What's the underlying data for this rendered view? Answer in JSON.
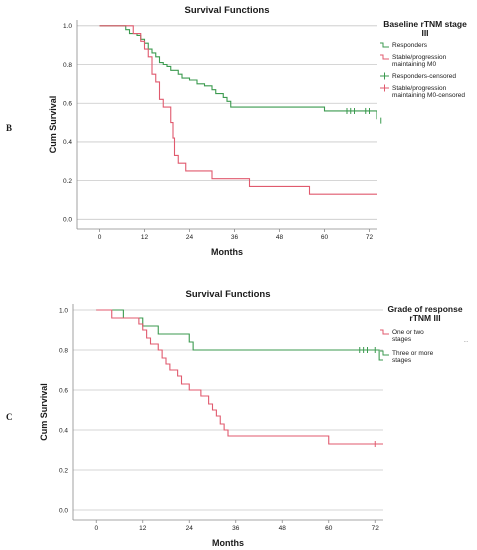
{
  "panel_labels": [
    "B",
    "C"
  ],
  "colors": {
    "green": "#3b9a4f",
    "red": "#e05a6e",
    "grid": "#c8c8c8",
    "axis": "#8a8a8a"
  },
  "chart_data": [
    {
      "type": "line",
      "title": "Survival Functions",
      "xlabel": "Months",
      "ylabel": "Cum Survival",
      "xlim": [
        -6,
        74
      ],
      "ylim": [
        -0.05,
        1.03
      ],
      "xticks": [
        0,
        12,
        24,
        36,
        48,
        60,
        72
      ],
      "yticks": [
        0.0,
        0.2,
        0.4,
        0.6,
        0.8,
        1.0
      ],
      "ytick_labels": [
        "0.0",
        "0.2",
        "0.4",
        "0.6",
        "0.8",
        "1.0"
      ],
      "grid": "horizontal",
      "legend_title_lines": [
        "Baseline rTNM stage",
        "III"
      ],
      "legend": [
        {
          "lines": [
            "Responders"
          ],
          "color": "#3b9a4f",
          "kind": "step"
        },
        {
          "lines": [
            "Stable/progression",
            "maintaining M0"
          ],
          "color": "#e05a6e",
          "kind": "step"
        },
        {
          "lines": [
            "Responders-censored"
          ],
          "color": "#3b9a4f",
          "kind": "censor"
        },
        {
          "lines": [
            "Stable/progression",
            "maintaining M0-censored"
          ],
          "color": "#e05a6e",
          "kind": "censor"
        }
      ],
      "series": [
        {
          "color": "#3b9a4f",
          "steps": [
            [
              0,
              1.0
            ],
            [
              7,
              0.98
            ],
            [
              8,
              0.96
            ],
            [
              10,
              0.95
            ],
            [
              11,
              0.93
            ],
            [
              12,
              0.91
            ],
            [
              13,
              0.88
            ],
            [
              14,
              0.86
            ],
            [
              15,
              0.84
            ],
            [
              16,
              0.81
            ],
            [
              17,
              0.8
            ],
            [
              18,
              0.79
            ],
            [
              19,
              0.77
            ],
            [
              21,
              0.75
            ],
            [
              22,
              0.73
            ],
            [
              24,
              0.72
            ],
            [
              26,
              0.7
            ],
            [
              28,
              0.69
            ],
            [
              30,
              0.67
            ],
            [
              31,
              0.65
            ],
            [
              33,
              0.63
            ],
            [
              34,
              0.61
            ],
            [
              35,
              0.58
            ],
            [
              60,
              0.56
            ],
            [
              74,
              0.52
            ],
            [
              75,
              0.51
            ],
            [
              76,
              0.51
            ]
          ],
          "censored": [
            [
              66,
              0.56
            ],
            [
              67,
              0.56
            ],
            [
              68,
              0.56
            ],
            [
              71,
              0.56
            ],
            [
              72,
              0.56
            ],
            [
              75,
              0.51
            ]
          ]
        },
        {
          "color": "#e05a6e",
          "steps": [
            [
              0,
              1.0
            ],
            [
              9,
              0.96
            ],
            [
              11,
              0.92
            ],
            [
              12,
              0.88
            ],
            [
              13,
              0.84
            ],
            [
              14,
              0.75
            ],
            [
              15,
              0.71
            ],
            [
              16,
              0.62
            ],
            [
              17,
              0.58
            ],
            [
              19,
              0.5
            ],
            [
              19.6,
              0.42
            ],
            [
              20,
              0.33
            ],
            [
              21,
              0.29
            ],
            [
              23,
              0.25
            ],
            [
              30,
              0.21
            ],
            [
              40,
              0.17
            ],
            [
              56,
              0.13
            ],
            [
              76,
              0.13
            ]
          ],
          "censored": []
        }
      ]
    },
    {
      "type": "line",
      "title": "Survival Functions",
      "xlabel": "Months",
      "ylabel": "Cum Survival",
      "xlim": [
        -6,
        74
      ],
      "ylim": [
        -0.05,
        1.03
      ],
      "xticks": [
        0,
        12,
        24,
        36,
        48,
        60,
        72
      ],
      "yticks": [
        0.0,
        0.2,
        0.4,
        0.6,
        0.8,
        1.0
      ],
      "ytick_labels": [
        "0.0",
        "0.2",
        "0.4",
        "0.6",
        "0.8",
        "1.0"
      ],
      "grid": "horizontal",
      "legend_title_lines": [
        "Grade of response",
        "rTNM III"
      ],
      "legend": [
        {
          "lines": [
            "One or two",
            "stages"
          ],
          "color": "#e05a6e",
          "kind": "step"
        },
        {
          "lines": [
            "Three or more",
            "stages"
          ],
          "color": "#3b9a4f",
          "kind": "step"
        }
      ],
      "legend_extra": "...",
      "series": [
        {
          "color": "#3b9a4f",
          "steps": [
            [
              0,
              1.0
            ],
            [
              7,
              0.96
            ],
            [
              12,
              0.92
            ],
            [
              16,
              0.88
            ],
            [
              24,
              0.84
            ],
            [
              25,
              0.8
            ],
            [
              72,
              0.8
            ],
            [
              73,
              0.75
            ],
            [
              75,
              0.71
            ],
            [
              76,
              0.71
            ]
          ],
          "censored": [
            [
              68,
              0.8
            ],
            [
              69,
              0.8
            ],
            [
              70,
              0.8
            ],
            [
              72,
              0.8
            ]
          ]
        },
        {
          "color": "#e05a6e",
          "steps": [
            [
              0,
              1.0
            ],
            [
              4,
              0.96
            ],
            [
              11,
              0.93
            ],
            [
              12,
              0.9
            ],
            [
              13,
              0.86
            ],
            [
              14,
              0.83
            ],
            [
              16,
              0.8
            ],
            [
              17,
              0.76
            ],
            [
              18,
              0.73
            ],
            [
              19,
              0.7
            ],
            [
              21,
              0.67
            ],
            [
              22,
              0.63
            ],
            [
              24,
              0.6
            ],
            [
              27,
              0.57
            ],
            [
              29,
              0.53
            ],
            [
              30,
              0.5
            ],
            [
              31,
              0.47
            ],
            [
              32,
              0.43
            ],
            [
              33,
              0.4
            ],
            [
              34,
              0.37
            ],
            [
              60,
              0.33
            ],
            [
              76,
              0.33
            ]
          ],
          "censored": [
            [
              72,
              0.33
            ]
          ]
        }
      ]
    }
  ]
}
